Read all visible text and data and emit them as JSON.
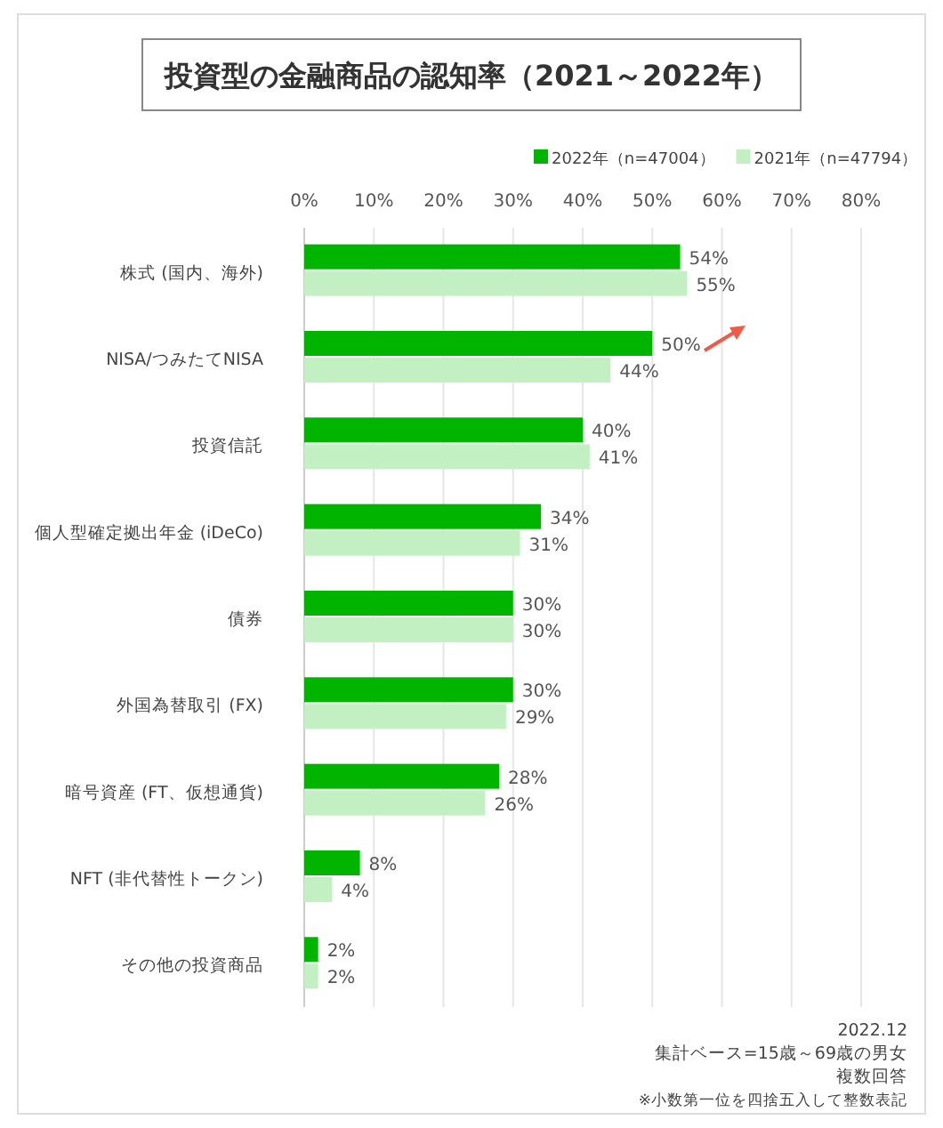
{
  "chart_data": {
    "type": "bar",
    "orientation": "horizontal",
    "title": "投資型の金融商品の認知率（2021～2022年）",
    "categories": [
      "株式 (国内、海外)",
      "NISA/つみたてNISA",
      "投資信託",
      "個人型確定拠出年金 (iDeCo)",
      "債券",
      "外国為替取引 (FX)",
      "暗号資産 (FT、仮想通貨)",
      "NFT (非代替性トークン)",
      "その他の投資商品"
    ],
    "series": [
      {
        "name": "2022年（n=47004）",
        "color": "#00b400",
        "values": [
          54,
          50,
          40,
          34,
          30,
          30,
          28,
          8,
          2
        ],
        "value_labels": [
          "54%",
          "50%",
          "40%",
          "34%",
          "30%",
          "30%",
          "28%",
          "8%",
          "2%"
        ]
      },
      {
        "name": "2021年（n=47794）",
        "color": "#c3f0c3",
        "values": [
          55,
          44,
          41,
          31,
          30,
          29,
          26,
          4,
          2
        ],
        "value_labels": [
          "55%",
          "44%",
          "41%",
          "31%",
          "30%",
          "29%",
          "26%",
          "4%",
          "2%"
        ]
      }
    ],
    "xlim": [
      0,
      80
    ],
    "xticks": [
      {
        "value": 0,
        "label": "0%"
      },
      {
        "value": 10,
        "label": "10%"
      },
      {
        "value": 20,
        "label": "20%"
      },
      {
        "value": 30,
        "label": "30%"
      },
      {
        "value": 40,
        "label": "40%"
      },
      {
        "value": 50,
        "label": "50%"
      },
      {
        "value": 60,
        "label": "60%"
      },
      {
        "value": 70,
        "label": "70%"
      },
      {
        "value": 80,
        "label": "80%"
      }
    ],
    "grid": "x",
    "legend": "top right",
    "annotations": [
      "2022.12",
      "集計ベース=15歳～69歳の男女",
      "複数回答",
      "※小数第一位を四捨五入して整数表記"
    ]
  }
}
